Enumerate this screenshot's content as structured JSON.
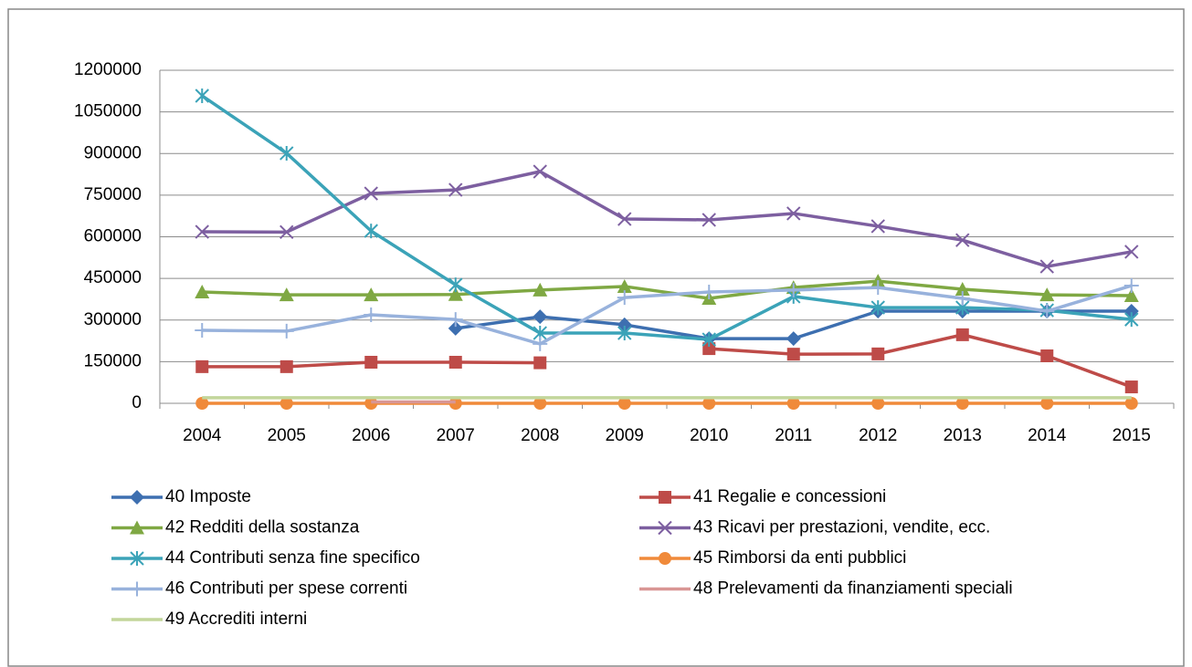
{
  "chart_data": {
    "type": "line",
    "categories": [
      "2004",
      "2005",
      "2006",
      "2007",
      "2008",
      "2009",
      "2010",
      "2011",
      "2012",
      "2013",
      "2014",
      "2015"
    ],
    "ylim": [
      0,
      1200000
    ],
    "yticks": [
      0,
      150000,
      300000,
      450000,
      600000,
      750000,
      900000,
      1050000,
      1200000
    ],
    "grid": true,
    "series": [
      {
        "name": "40 Imposte",
        "color": "#3d6fb0",
        "marker": "diamond",
        "values": [
          null,
          null,
          null,
          270000,
          312000,
          283000,
          233000,
          233000,
          332000,
          332000,
          332000,
          332000
        ]
      },
      {
        "name": "41 Regalie e concessioni",
        "color": "#be4b48",
        "marker": "square",
        "values": [
          132000,
          132000,
          148000,
          148000,
          146000,
          null,
          197000,
          177000,
          178000,
          247000,
          171000,
          59000
        ]
      },
      {
        "name": "42 Redditi della sostanza",
        "color": "#7fa843",
        "marker": "triangle",
        "values": [
          401000,
          391000,
          391000,
          392000,
          408000,
          421000,
          378000,
          417000,
          440000,
          411000,
          391000,
          388000
        ]
      },
      {
        "name": "43 Ricavi per prestazioni, vendite, ecc.",
        "color": "#7d5fa0",
        "marker": "x",
        "values": [
          618000,
          617000,
          756000,
          769000,
          835000,
          664000,
          661000,
          684000,
          638000,
          588000,
          493000,
          546000
        ]
      },
      {
        "name": "44 Contributi senza fine specifico",
        "color": "#3ba3b8",
        "marker": "star",
        "values": [
          1108000,
          901000,
          621000,
          427000,
          253000,
          253000,
          230000,
          385000,
          345000,
          345000,
          335000,
          302000
        ]
      },
      {
        "name": "45 Rimborsi da enti pubblici",
        "color": "#f08a3a",
        "marker": "circle",
        "values": [
          0,
          0,
          0,
          0,
          0,
          0,
          0,
          0,
          0,
          0,
          0,
          0
        ]
      },
      {
        "name": "46 Contributi per spese correnti",
        "color": "#98b2dc",
        "marker": "plus",
        "values": [
          263000,
          260000,
          319000,
          302000,
          214000,
          381000,
          401000,
          408000,
          417000,
          378000,
          332000,
          424000
        ]
      },
      {
        "name": "48 Prelevamenti da finanziamenti speciali",
        "color": "#d99694",
        "marker": "none",
        "values": [
          null,
          null,
          5000,
          5000,
          null,
          null,
          null,
          null,
          null,
          null,
          null,
          null
        ]
      },
      {
        "name": "49 Accrediti interni",
        "color": "#c3d69b",
        "marker": "none",
        "values": [
          20000,
          20000,
          20000,
          20000,
          20000,
          20000,
          20000,
          20000,
          20000,
          20000,
          20000,
          20000
        ]
      }
    ],
    "legend": "bottom"
  }
}
